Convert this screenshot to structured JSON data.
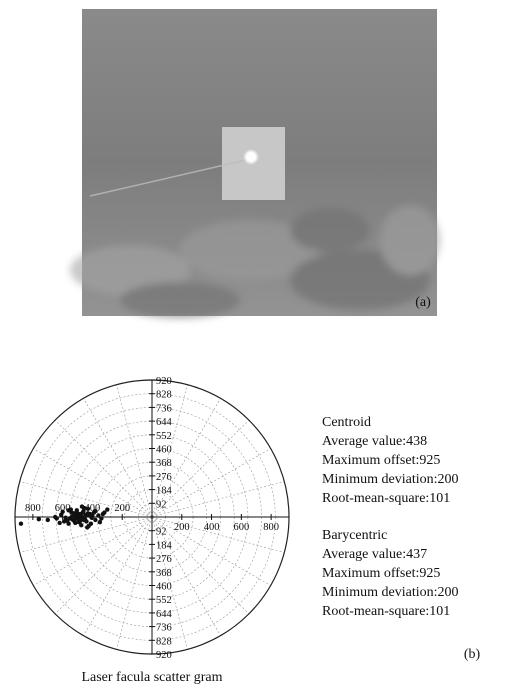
{
  "panel_a": {
    "label": "(a)"
  },
  "chart_data": {
    "type": "scatter",
    "title": "Laser facula scatter gram",
    "xlim": [
      -920,
      920
    ],
    "ylim": [
      -920,
      920
    ],
    "xticks": [
      {
        "value": -800,
        "label": "800"
      },
      {
        "value": -600,
        "label": "600"
      },
      {
        "value": -400,
        "label": "400"
      },
      {
        "value": -200,
        "label": "200"
      },
      200,
      400,
      600,
      800
    ],
    "yticks": [
      920,
      828,
      736,
      644,
      552,
      460,
      368,
      276,
      184,
      92,
      {
        "value": -92,
        "label": "92"
      },
      {
        "value": -184,
        "label": "184"
      },
      {
        "value": -276,
        "label": "276"
      },
      {
        "value": -368,
        "label": "368"
      },
      {
        "value": -460,
        "label": "460"
      },
      {
        "value": -552,
        "label": "552"
      },
      {
        "value": -644,
        "label": "644"
      },
      {
        "value": -736,
        "label": "736"
      },
      {
        "value": -828,
        "label": "828"
      },
      {
        "value": -920,
        "label": "920"
      }
    ],
    "grid": true,
    "color": "#111111",
    "x": [
      -420,
      -450,
      -480,
      -510,
      -390,
      -440,
      -470,
      -500,
      -530,
      -410,
      -460,
      -490,
      -520,
      -550,
      -380,
      -430,
      -475,
      -505,
      -540,
      -570,
      -400,
      -445,
      -485,
      -515,
      -545,
      -360,
      -425,
      -455,
      -495,
      -525,
      -580,
      -610,
      -640,
      -350,
      -330,
      -600,
      -560,
      -470,
      -435,
      -405,
      -465,
      -495,
      -520,
      -455,
      -415,
      -380,
      -340,
      -650,
      -700,
      -760,
      -880,
      -300,
      -320,
      -540,
      -590,
      -480,
      -430,
      -510,
      -560,
      -620
    ],
    "y": [
      10,
      -15,
      20,
      -5,
      30,
      -30,
      0,
      25,
      -20,
      -45,
      40,
      -35,
      10,
      -10,
      -20,
      55,
      -55,
      45,
      30,
      -25,
      5,
      15,
      -5,
      -40,
      50,
      10,
      -60,
      60,
      -15,
      25,
      -5,
      15,
      -10,
      -35,
      20,
      35,
      -45,
      70,
      -70,
      -5,
      30,
      5,
      -30,
      -20,
      20,
      40,
      -10,
      0,
      -20,
      -15,
      -45,
      50,
      30,
      0,
      -30,
      -25,
      25,
      15,
      45,
      -40
    ]
  },
  "stats": [
    {
      "heading": "Centroid",
      "lines": [
        "Average value:438",
        "Maximum offset:925",
        "Minimum deviation:200",
        "Root-mean-square:101"
      ]
    },
    {
      "heading": "Barycentric",
      "lines": [
        "Average value:437",
        "Maximum offset:925",
        "Minimum deviation:200",
        "Root-mean-square:101"
      ]
    }
  ],
  "panel_b": {
    "label": "(b)"
  }
}
